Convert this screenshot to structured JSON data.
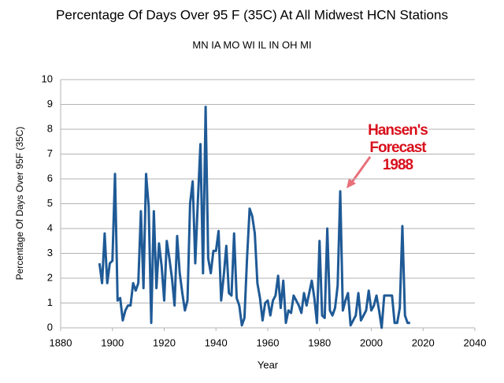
{
  "chart_data": {
    "type": "line",
    "title": "Percentage Of Days Over 95 F (35C) At All Midwest HCN Stations",
    "subtitle": "MN IA MO WI IL IN OH MI",
    "x_label": "Year",
    "y_label": "Percentage Of Days Over 95F (35C)",
    "annotation_lines": [
      "Hansen's",
      "Forecast",
      "1988"
    ],
    "color": "#1f5a96",
    "grid": true,
    "xlim": [
      1880,
      2040
    ],
    "xticks": [
      1880,
      1900,
      1920,
      1940,
      1960,
      1980,
      2000,
      2020,
      2040
    ],
    "ylim": [
      0,
      10
    ],
    "yticks": [
      0,
      1,
      2,
      3,
      4,
      5,
      6,
      7,
      8,
      9,
      10
    ],
    "x": [
      1895,
      1896,
      1897,
      1898,
      1899,
      1900,
      1901,
      1902,
      1903,
      1904,
      1905,
      1906,
      1907,
      1908,
      1909,
      1910,
      1911,
      1912,
      1913,
      1914,
      1915,
      1916,
      1917,
      1918,
      1919,
      1920,
      1921,
      1922,
      1923,
      1924,
      1925,
      1926,
      1927,
      1928,
      1929,
      1930,
      1931,
      1932,
      1933,
      1934,
      1935,
      1936,
      1937,
      1938,
      1939,
      1940,
      1941,
      1942,
      1943,
      1944,
      1945,
      1946,
      1947,
      1948,
      1949,
      1950,
      1951,
      1952,
      1953,
      1954,
      1955,
      1956,
      1957,
      1958,
      1959,
      1960,
      1961,
      1962,
      1963,
      1964,
      1965,
      1966,
      1967,
      1968,
      1969,
      1970,
      1971,
      1972,
      1973,
      1974,
      1975,
      1976,
      1977,
      1978,
      1979,
      1980,
      1981,
      1982,
      1983,
      1984,
      1985,
      1986,
      1987,
      1988,
      1989,
      1990,
      1991,
      1992,
      1993,
      1994,
      1995,
      1996,
      1997,
      1998,
      1999,
      2000,
      2001,
      2002,
      2003,
      2004,
      2005,
      2006,
      2007,
      2008,
      2009,
      2010,
      2011,
      2012,
      2013,
      2014,
      2015
    ],
    "values": [
      2.6,
      1.8,
      3.8,
      1.8,
      2.6,
      2.7,
      6.2,
      1.1,
      1.2,
      0.3,
      0.7,
      0.9,
      0.9,
      1.8,
      1.5,
      1.8,
      4.7,
      1.6,
      6.2,
      4.9,
      0.2,
      4.7,
      1.6,
      3.4,
      2.5,
      1.1,
      3.5,
      2.8,
      2.0,
      0.9,
      3.7,
      2.2,
      1.4,
      0.7,
      1.1,
      5.0,
      5.9,
      2.6,
      5.1,
      7.4,
      2.2,
      8.9,
      2.8,
      2.2,
      3.1,
      3.1,
      3.9,
      1.1,
      2.1,
      3.3,
      1.4,
      1.3,
      3.8,
      1.2,
      0.9,
      0.1,
      0.4,
      2.8,
      4.8,
      4.5,
      3.8,
      1.8,
      1.2,
      0.3,
      1.0,
      1.1,
      0.5,
      1.1,
      1.3,
      2.1,
      0.8,
      1.9,
      0.2,
      0.7,
      0.6,
      1.3,
      1.1,
      0.9,
      0.6,
      1.4,
      0.9,
      1.4,
      1.9,
      1.2,
      0.2,
      3.5,
      0.5,
      0.4,
      4.0,
      0.7,
      0.5,
      0.8,
      1.7,
      5.5,
      0.7,
      1.1,
      1.4,
      0.1,
      0.3,
      0.5,
      1.4,
      0.3,
      0.5,
      0.7,
      1.5,
      0.7,
      0.9,
      1.3,
      0.7,
      0.0,
      1.3,
      1.3,
      1.3,
      1.3,
      0.2,
      0.2,
      0.8,
      4.1,
      0.5,
      0.2,
      0.2
    ]
  }
}
